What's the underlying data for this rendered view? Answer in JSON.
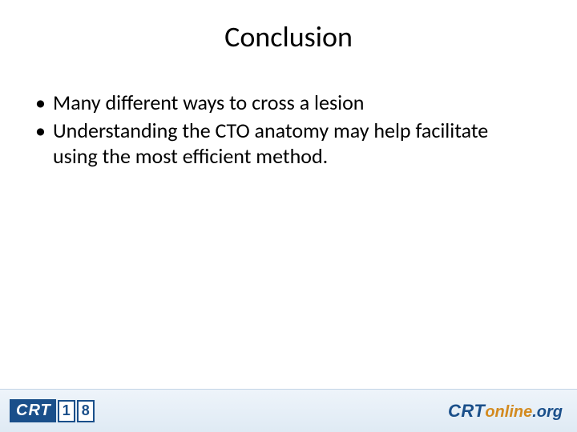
{
  "slide": {
    "title": "Conclusion",
    "bullets": [
      "Many different ways to cross a lesion",
      "Understanding the CTO anatomy may help facilitate using the most efficient method."
    ]
  },
  "footer": {
    "left_logo": {
      "text": "CRT",
      "year_digits": [
        "1",
        "8"
      ],
      "box_bg": "#1a4f8a",
      "box_fg": "#ffffff",
      "digit_border": "#1a4f8a",
      "digit_fg": "#1a4f8a",
      "digit_bg": "#ffffff"
    },
    "right_logo": {
      "part1": "CRT",
      "part2": "online",
      "part3": ".org",
      "color1": "#1a4f8a",
      "color2": "#d38a1f",
      "color3": "#1a4f8a"
    },
    "bg_gradient_top": "#eef4fa",
    "bg_gradient_bottom": "#dfeaf4",
    "border_top_color": "#c3d4e6"
  },
  "styling": {
    "title_fontsize": 36,
    "body_fontsize": 26,
    "title_color": "#000000",
    "body_color": "#000000",
    "background": "#ffffff",
    "font_family": "Calibri"
  }
}
